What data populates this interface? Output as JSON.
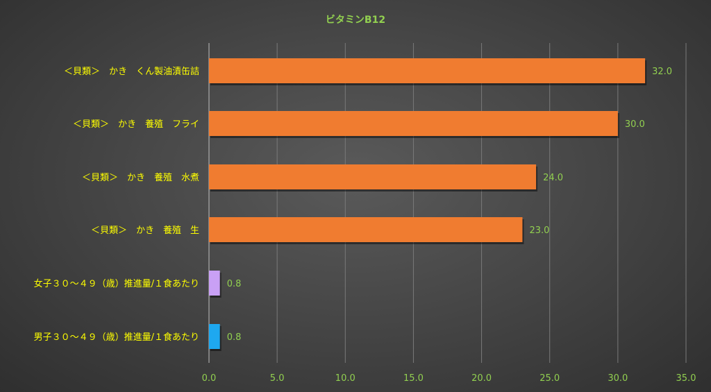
{
  "chart_data": {
    "type": "bar",
    "orientation": "horizontal",
    "title": "ビタミンB12",
    "xlabel": "",
    "ylabel": "",
    "xlim": [
      0,
      35
    ],
    "x_ticks": [
      "0.0",
      "5.0",
      "10.0",
      "15.0",
      "20.0",
      "25.0",
      "30.0",
      "35.0"
    ],
    "grid": true,
    "categories": [
      "＜貝類＞　かき　くん製油漬缶詰",
      "＜貝類＞　かき　養殖　フライ",
      "＜貝類＞　かき　養殖　水煮",
      "＜貝類＞　かき　養殖　生",
      "女子３０～４９（歳）推進量/１食あたり",
      "男子３０～４９（歳）推進量/１食あたり"
    ],
    "values": [
      32.0,
      30.0,
      24.0,
      23.0,
      0.8,
      0.8
    ],
    "value_labels": [
      "32.0",
      "30.0",
      "24.0",
      "23.0",
      "0.8",
      "0.8"
    ],
    "bar_colors": [
      "#f07c30",
      "#f07c30",
      "#f07c30",
      "#f07c30",
      "#c9a0f5",
      "#1ea8f0"
    ]
  },
  "colors": {
    "title": "#92d050",
    "category_labels": "#ffff00",
    "value_labels": "#92d050",
    "tick_labels": "#92d050",
    "gridlines": "#7a7a7a"
  }
}
